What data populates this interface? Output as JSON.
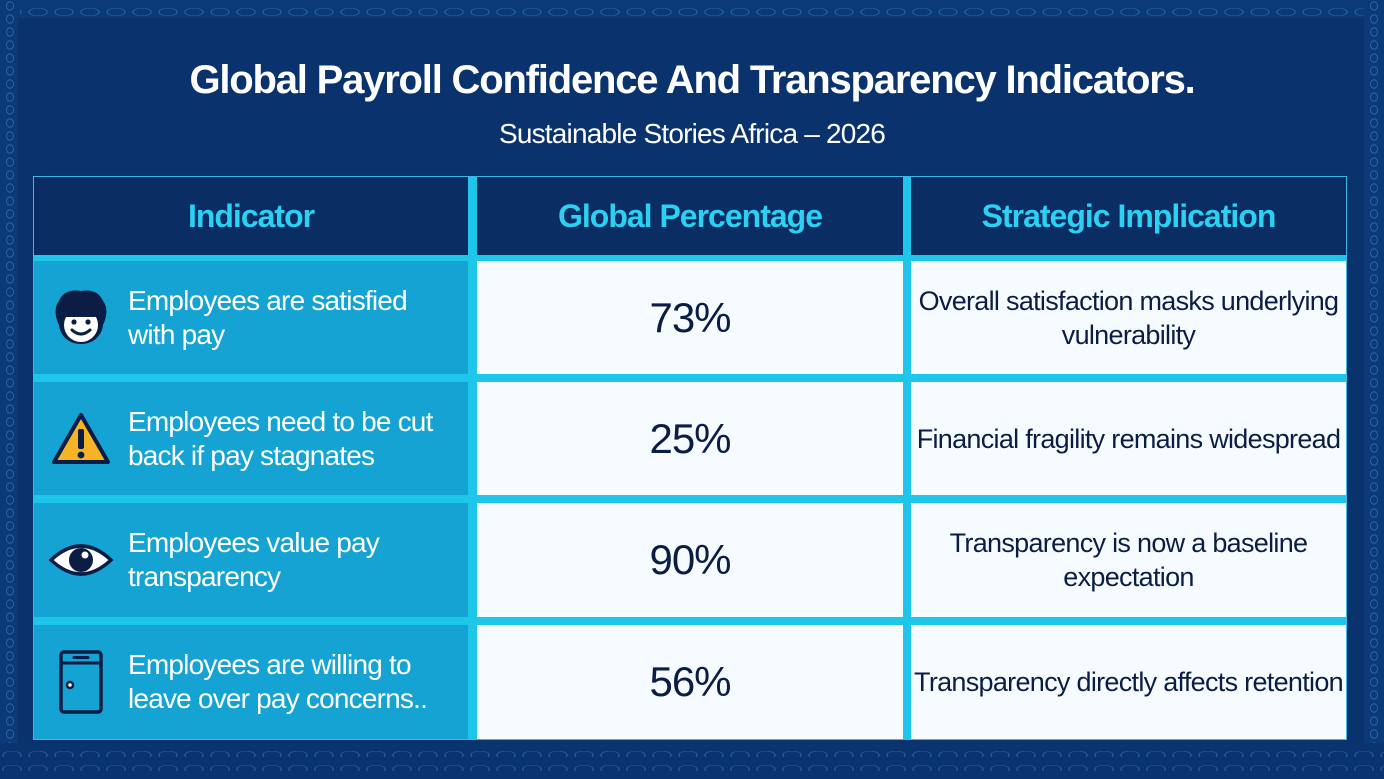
{
  "header": {
    "title": "Global Payroll Confidence And Transparency Indicators.",
    "subtitle": "Sustainable Stories Africa – 2026"
  },
  "table": {
    "columns": [
      "Indicator",
      "Global Percentage",
      "Strategic Implication"
    ],
    "rows": [
      {
        "icon": "smiling-face-icon",
        "indicator": "Employees are satisfied with pay",
        "percentage": "73%",
        "implication": "Overall satisfaction masks underlying vulnerability"
      },
      {
        "icon": "warning-icon",
        "indicator": "Employees need to be cut back if pay stagnates",
        "percentage": "25%",
        "implication": "Financial fragility remains widespread"
      },
      {
        "icon": "eye-icon",
        "indicator": "Employees value pay transparency",
        "percentage": "90%",
        "implication": "Transparency is now a baseline expectation"
      },
      {
        "icon": "door-icon",
        "indicator": "Employees are willing to leave over pay concerns..",
        "percentage": "56%",
        "implication": "Transparency directly affects retention"
      }
    ]
  },
  "colors": {
    "background": "#0a336e",
    "header_text": "#2bd0f2",
    "grid": "#1ec6ea",
    "indicator_cell": "#14a3d2",
    "value_cell": "#f5fbfe",
    "value_text": "#0b1d44",
    "warning": "#f5b326"
  }
}
